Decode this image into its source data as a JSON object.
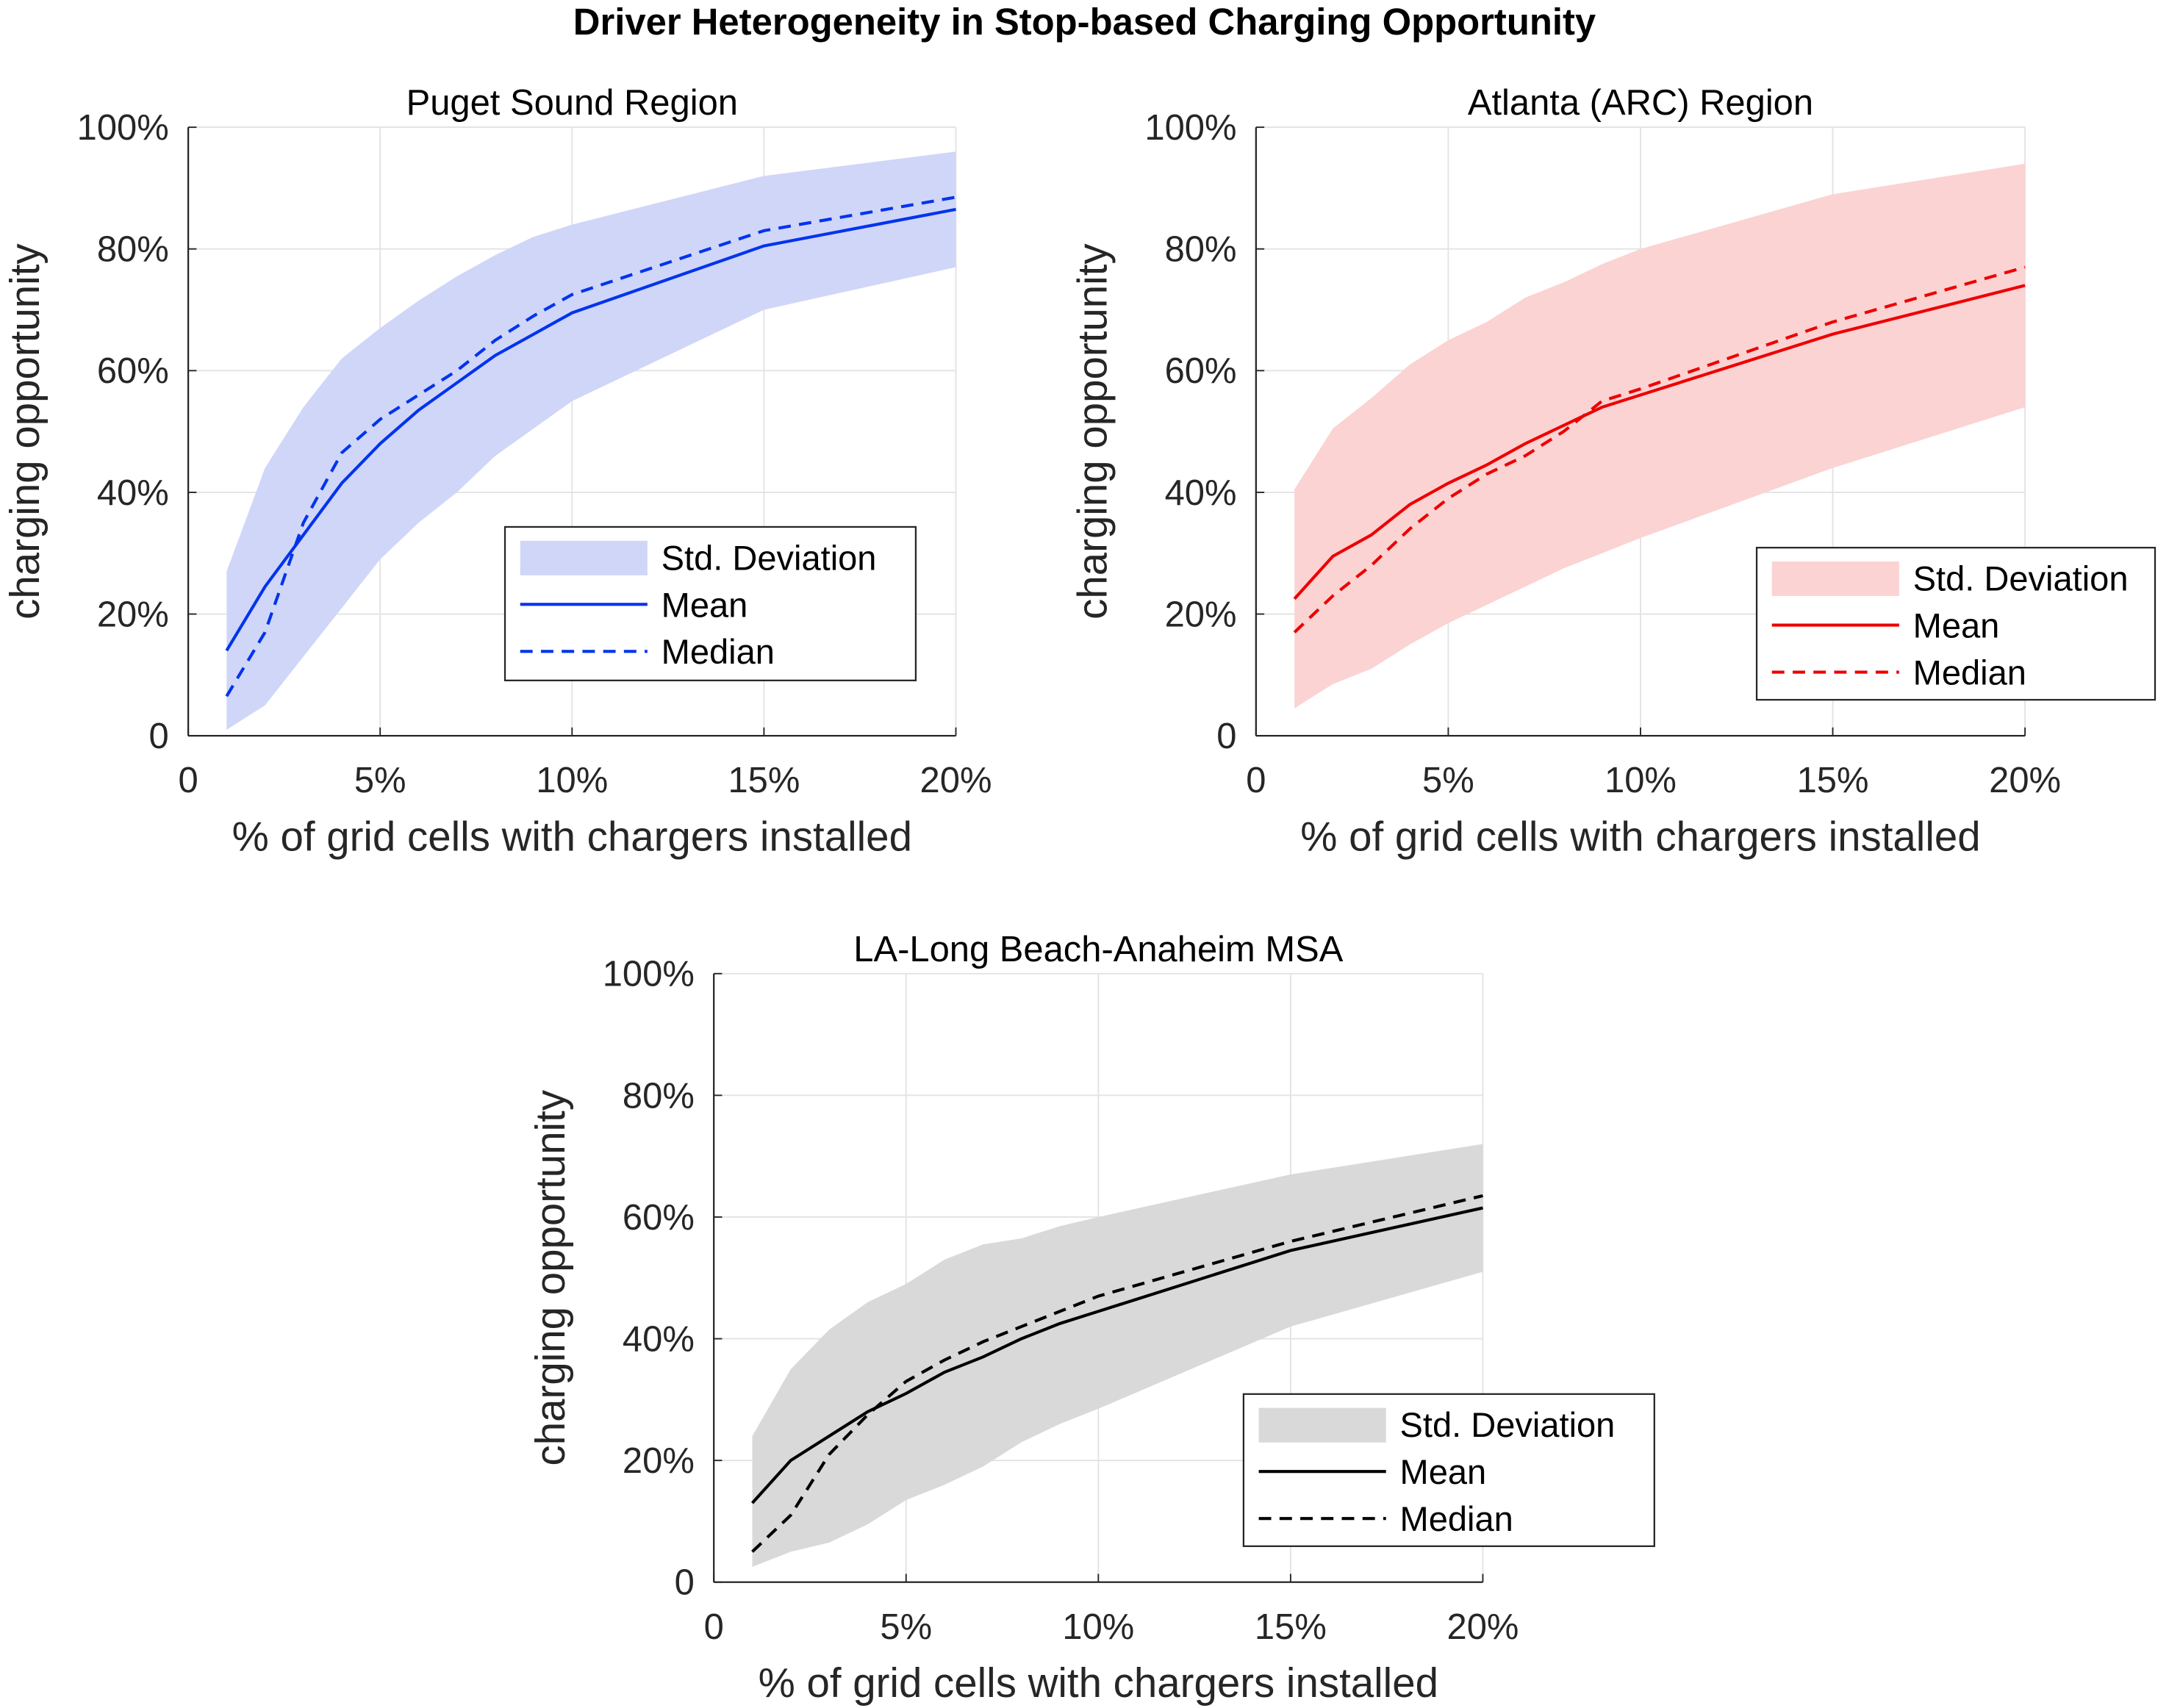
{
  "title": "Driver Heterogeneity in Stop-based Charging Opportunity",
  "chart_data": [
    {
      "type": "line",
      "title": "Puget Sound Region",
      "xlabel": "% of grid cells with chargers installed",
      "ylabel": "charging opportunity",
      "xlim": [
        0,
        20
      ],
      "ylim": [
        0,
        100
      ],
      "xticks": [
        0,
        5,
        10,
        15,
        20
      ],
      "xticklabels": [
        "0",
        "5%",
        "10%",
        "15%",
        "20%"
      ],
      "yticks": [
        0,
        20,
        40,
        60,
        80,
        100
      ],
      "yticklabels": [
        "0",
        "20%",
        "40%",
        "60%",
        "80%",
        "100%"
      ],
      "grid": true,
      "legend_position": "bottom-right",
      "color": "#0033ee",
      "band_color": "#d0d6f8",
      "x": [
        1,
        2,
        3,
        4,
        5,
        6,
        7,
        8,
        9,
        10,
        15,
        20
      ],
      "series": [
        {
          "name": "Std. Deviation",
          "upper": [
            27,
            44,
            54,
            62,
            67,
            71.5,
            75.5,
            79,
            82,
            84,
            92,
            96
          ],
          "lower": [
            1,
            5,
            13,
            21,
            29,
            35,
            40,
            46,
            50.5,
            55,
            70,
            77
          ]
        },
        {
          "name": "Mean",
          "values": [
            14,
            24.5,
            33,
            41.5,
            48,
            53.5,
            58,
            62.5,
            66,
            69.5,
            80.5,
            86.5
          ]
        },
        {
          "name": "Median",
          "values": [
            6.5,
            17,
            35,
            46.5,
            52,
            56,
            60,
            65,
            69,
            72.5,
            83,
            88.5
          ]
        }
      ]
    },
    {
      "type": "line",
      "title": "Atlanta (ARC) Region",
      "xlabel": "% of grid cells with chargers installed",
      "ylabel": "charging opportunity",
      "xlim": [
        0,
        20
      ],
      "ylim": [
        0,
        100
      ],
      "xticks": [
        0,
        5,
        10,
        15,
        20
      ],
      "xticklabels": [
        "0",
        "5%",
        "10%",
        "15%",
        "20%"
      ],
      "yticks": [
        0,
        20,
        40,
        60,
        80,
        100
      ],
      "yticklabels": [
        "0",
        "20%",
        "40%",
        "60%",
        "80%",
        "100%"
      ],
      "grid": true,
      "legend_position": "bottom-right",
      "color": "#ee0000",
      "band_color": "#fbd3d3",
      "x": [
        1,
        2,
        3,
        4,
        5,
        6,
        7,
        8,
        9,
        10,
        15,
        20
      ],
      "series": [
        {
          "name": "Std. Deviation",
          "upper": [
            40.5,
            50.5,
            55.5,
            61,
            65,
            68,
            72,
            74.5,
            77.5,
            80,
            89,
            94
          ],
          "lower": [
            4.5,
            8.5,
            11,
            15,
            18.5,
            21.5,
            24.5,
            27.5,
            30,
            32.5,
            44,
            54
          ]
        },
        {
          "name": "Mean",
          "values": [
            22.5,
            29.5,
            33,
            38,
            41.5,
            44.5,
            48,
            51,
            54,
            56,
            66,
            74
          ]
        },
        {
          "name": "Median",
          "values": [
            17,
            23,
            28,
            34,
            39,
            43,
            46,
            50,
            55,
            57,
            68,
            77
          ]
        }
      ]
    },
    {
      "type": "line",
      "title": "LA-Long Beach-Anaheim MSA",
      "xlabel": "% of grid cells with chargers installed",
      "ylabel": "charging opportunity",
      "xlim": [
        0,
        20
      ],
      "ylim": [
        0,
        100
      ],
      "xticks": [
        0,
        5,
        10,
        15,
        20
      ],
      "xticklabels": [
        "0",
        "5%",
        "10%",
        "15%",
        "20%"
      ],
      "yticks": [
        0,
        20,
        40,
        60,
        80,
        100
      ],
      "yticklabels": [
        "0",
        "20%",
        "40%",
        "60%",
        "80%",
        "100%"
      ],
      "grid": true,
      "legend_position": "bottom-right",
      "color": "#000000",
      "band_color": "#d9d9d9",
      "x": [
        1,
        2,
        3,
        4,
        5,
        6,
        7,
        8,
        9,
        10,
        15,
        20
      ],
      "series": [
        {
          "name": "Std. Deviation",
          "upper": [
            24,
            35,
            41.5,
            46,
            49,
            53,
            55.5,
            56.5,
            58.5,
            60,
            67,
            72
          ],
          "lower": [
            2.5,
            5,
            6.5,
            9.5,
            13.5,
            16,
            19,
            23,
            26,
            28.5,
            42,
            51
          ]
        },
        {
          "name": "Mean",
          "values": [
            13,
            20,
            24,
            28,
            31,
            34.5,
            37,
            40,
            42.5,
            44.5,
            54.5,
            61.5
          ]
        },
        {
          "name": "Median",
          "values": [
            5,
            11,
            21,
            27.5,
            33,
            36.5,
            39.5,
            42,
            44.5,
            47,
            56,
            63.5
          ]
        }
      ]
    }
  ]
}
